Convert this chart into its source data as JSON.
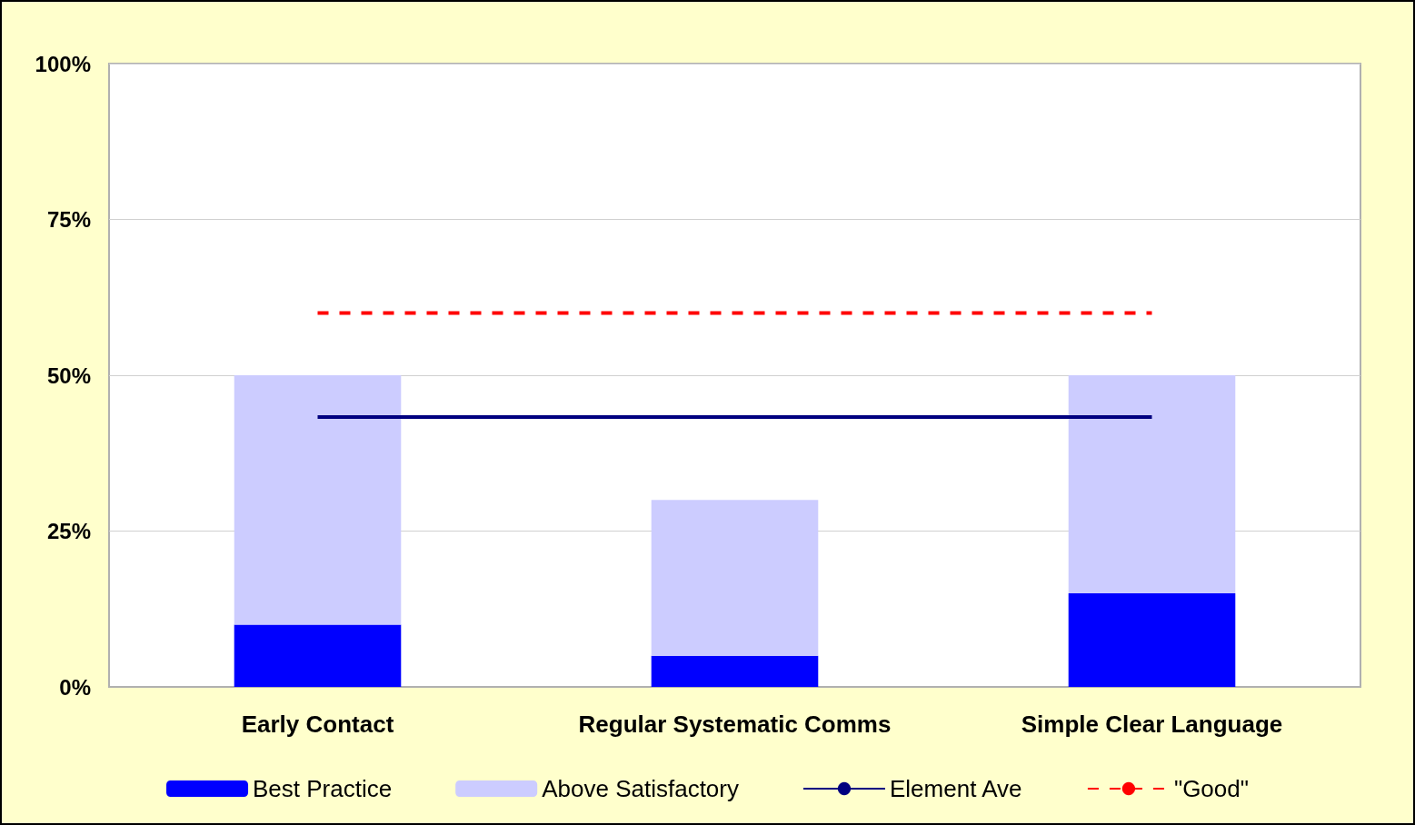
{
  "chart_data": {
    "type": "bar",
    "stacked": true,
    "categories": [
      "Early Contact",
      "Regular Systematic Comms",
      "Simple Clear Language"
    ],
    "series": [
      {
        "name": "Best Practice",
        "color": "#0000ff",
        "values": [
          10,
          5,
          15
        ]
      },
      {
        "name": "Above Satisfactory",
        "color": "#ccccff",
        "values": [
          40,
          25,
          35
        ]
      },
      {
        "name": "Element Ave",
        "type": "line",
        "color": "#000080",
        "line_style": "solid",
        "values": [
          43.3,
          43.3,
          43.3
        ]
      },
      {
        "name": "\"Good\"",
        "type": "line",
        "color": "#ff0000",
        "line_style": "dashed",
        "values": [
          60,
          60,
          60
        ]
      }
    ],
    "ylim": [
      0,
      100
    ],
    "yticks": [
      {
        "value": 0,
        "label": "0%"
      },
      {
        "value": 25,
        "label": "25%"
      },
      {
        "value": 50,
        "label": "50%"
      },
      {
        "value": 75,
        "label": "75%"
      },
      {
        "value": 100,
        "label": "100%"
      }
    ],
    "grid": "y",
    "legend": "bottom"
  }
}
